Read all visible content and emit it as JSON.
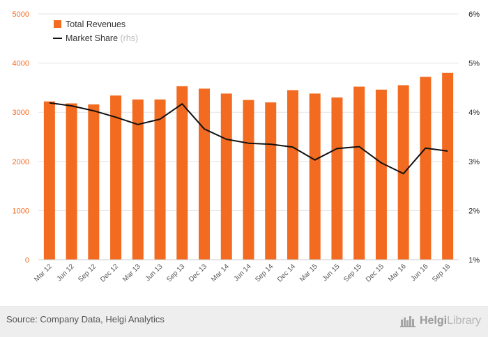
{
  "chart_data": {
    "type": "bar",
    "categories": [
      "Mar 12",
      "Jun 12",
      "Sep 12",
      "Dec 12",
      "Mar 13",
      "Jun 13",
      "Sep 13",
      "Dec 13",
      "Mar 14",
      "Jun 14",
      "Sep 14",
      "Dec 14",
      "Mar 15",
      "Jun 15",
      "Sep 15",
      "Dec 15",
      "Mar 16",
      "Jun 16",
      "Sep 16"
    ],
    "series": [
      {
        "name": "Total Revenues",
        "type": "bar",
        "axis": "left",
        "color": "#f26b21",
        "values": [
          3220,
          3180,
          3160,
          3340,
          3260,
          3260,
          3530,
          3480,
          3380,
          3250,
          3200,
          3450,
          3380,
          3300,
          3520,
          3460,
          3550,
          3720,
          3800
        ]
      },
      {
        "name": "Market Share",
        "name_suffix": "(rhs)",
        "type": "line",
        "axis": "right",
        "color": "#111111",
        "values": [
          4.19,
          4.13,
          4.03,
          3.9,
          3.75,
          3.86,
          4.17,
          3.66,
          3.45,
          3.37,
          3.35,
          3.29,
          3.03,
          3.26,
          3.3,
          2.97,
          2.75,
          3.27,
          3.21
        ]
      }
    ],
    "left_axis": {
      "ylim": [
        0,
        5000
      ],
      "ticks": [
        "0",
        "1000",
        "2000",
        "3000",
        "4000",
        "5000"
      ],
      "tick_color": "#f26b21"
    },
    "right_axis": {
      "ylim": [
        1,
        6
      ],
      "ticks": [
        "1%",
        "2%",
        "3%",
        "4%",
        "5%",
        "6%"
      ]
    },
    "grid": true,
    "legend_position": "top-left"
  },
  "footer": {
    "source": "Source: Company Data, Helgi Analytics",
    "logo_part1": "Helgi",
    "logo_part2": "Library"
  }
}
